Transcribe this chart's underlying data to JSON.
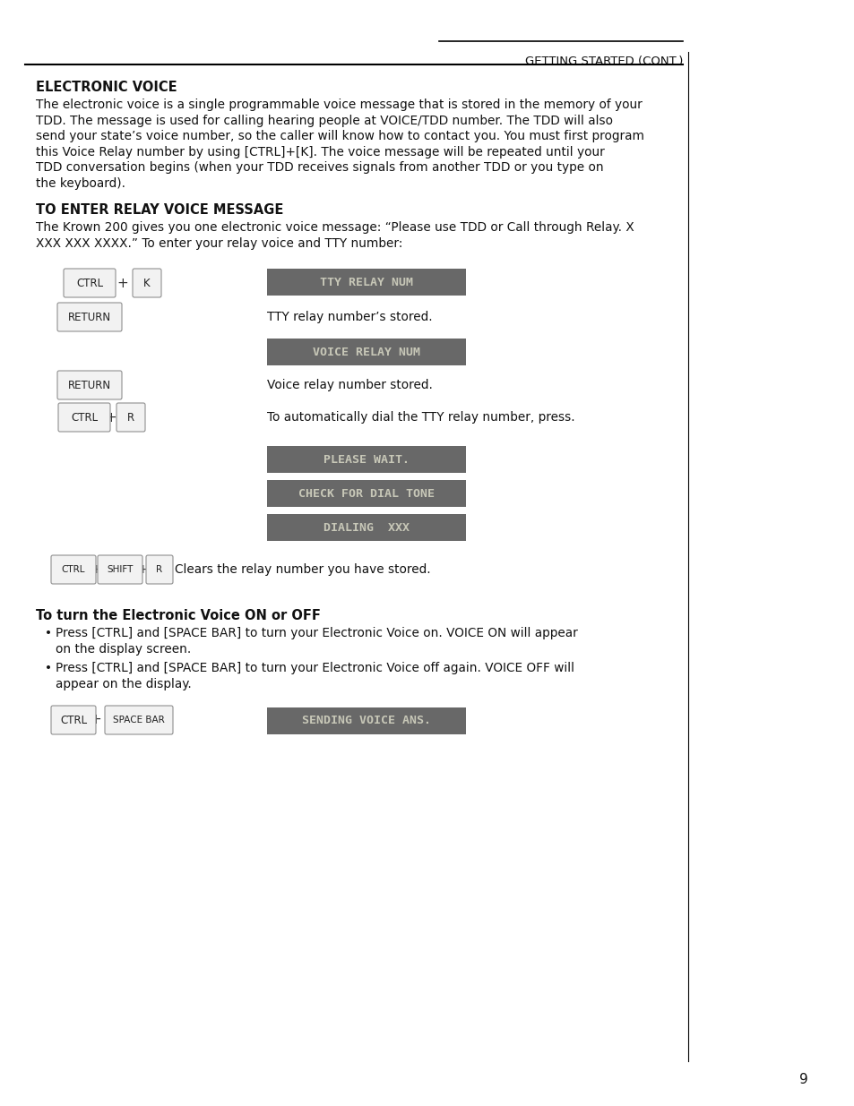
{
  "page_number": "9",
  "header_text": "GETTING STARTED (CONT.)",
  "section1_title": "ELECTRONIC VOICE",
  "section1_body_lines": [
    "The electronic voice is a single programmable voice message that is stored in the memory of your",
    "TDD. The message is used for calling hearing people at VOICE/TDD number. The TDD will also",
    "send your state’s voice number, so the caller will know how to contact you. You must first program",
    "this Voice Relay number by using [CTRL]+[K]. The voice message will be repeated until your",
    "TDD conversation begins (when your TDD receives signals from another TDD or you type on",
    "the keyboard)."
  ],
  "section2_title": "TO ENTER RELAY VOICE MESSAGE",
  "section2_body_lines": [
    "The Krown 200 gives you one electronic voice message: “Please use TDD or Call through Relay. X",
    "XXX XXX XXXX.” To enter your relay voice and TTY number:"
  ],
  "display_color": "#686868",
  "display_text_color": "#c8c8b8",
  "page_bg": "#ffffff",
  "key_face_color": "#f2f2f2",
  "key_shadow_color": "#b0b0b0",
  "key_edge_color": "#909090"
}
